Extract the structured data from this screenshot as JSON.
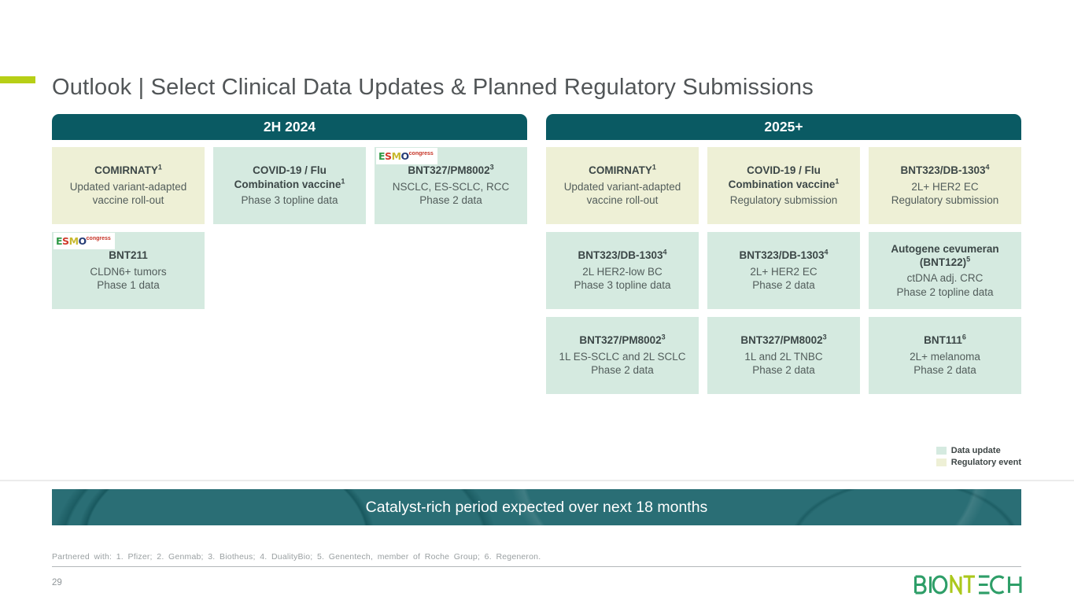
{
  "slide": {
    "title": "Outlook | Select Clinical Data Updates & Planned Regulatory Submissions",
    "page_number": "29",
    "banner_text": "Catalyst-rich period expected over next 18 months",
    "footnote": "Partnered with: 1. Pfizer; 2. Genmab; 3. Biotheus; 4. DualityBio; 5. Genentech, member of Roche Group; 6. Regeneron.",
    "logo_text": "BIONTECH"
  },
  "colors": {
    "header_teal": "#0a5a63",
    "banner_teal": "#2a6e75",
    "card_green": "#d5eae0",
    "card_yellow": "#eef0d6",
    "accent_lime": "#b7cf16",
    "title_gray": "#515557",
    "card_title_gray": "#3c4747",
    "card_body_gray": "#525d5b",
    "logo_green": "#2e9e68",
    "logo_lime": "#abc81c"
  },
  "legend": {
    "items": [
      {
        "label": "Data update",
        "type": "data"
      },
      {
        "label": "Regulatory event",
        "type": "regulatory"
      }
    ]
  },
  "esmo_badge": {
    "letters": [
      {
        "ch": "E",
        "color": "#2f9a47"
      },
      {
        "ch": "S",
        "color": "#d03a2b"
      },
      {
        "ch": "M",
        "color": "#c8b92e"
      },
      {
        "ch": "O",
        "color": "#253c76"
      }
    ],
    "congress": "congress"
  },
  "sections": [
    {
      "header": "2H 2024",
      "rows": [
        [
          {
            "title": "COMIRNATY",
            "sup": "1",
            "body": [
              "Updated variant-adapted vaccine roll-out"
            ],
            "type": "regulatory",
            "badge": false
          },
          {
            "title": "COVID-19 / Flu Combination vaccine",
            "sup": "1",
            "body": [
              "Phase 3 topline data"
            ],
            "type": "data",
            "badge": false
          },
          {
            "title": "BNT327/PM8002",
            "sup": "3",
            "body": [
              "NSCLC, ES-SCLC, RCC",
              "Phase 2 data"
            ],
            "type": "data",
            "badge": true
          }
        ],
        [
          {
            "title": "BNT211",
            "sup": "",
            "body": [
              "CLDN6+ tumors",
              "Phase 1 data"
            ],
            "type": "data",
            "badge": true
          },
          null,
          null
        ]
      ]
    },
    {
      "header": "2025+",
      "rows": [
        [
          {
            "title": "COMIRNATY",
            "sup": "1",
            "body": [
              "Updated variant-adapted vaccine roll-out"
            ],
            "type": "regulatory",
            "badge": false
          },
          {
            "title": "COVID-19 / Flu Combination vaccine",
            "sup": "1",
            "body": [
              "Regulatory submission"
            ],
            "type": "regulatory",
            "badge": false
          },
          {
            "title": "BNT323/DB-1303",
            "sup": "4",
            "body": [
              "2L+ HER2 EC",
              "Regulatory submission"
            ],
            "type": "regulatory",
            "badge": false
          }
        ],
        [
          {
            "title": "BNT323/DB-1303",
            "sup": "4",
            "body": [
              "2L HER2-low BC",
              "Phase 3 topline data"
            ],
            "type": "data",
            "badge": false
          },
          {
            "title": "BNT323/DB-1303",
            "sup": "4",
            "body": [
              "2L+ HER2 EC",
              "Phase 2 data"
            ],
            "type": "data",
            "badge": false
          },
          {
            "title": "Autogene cevumeran (BNT122)",
            "sup": "5",
            "body": [
              "ctDNA adj. CRC",
              "Phase 2 topline data"
            ],
            "type": "data",
            "badge": false
          }
        ],
        [
          {
            "title": "BNT327/PM8002",
            "sup": "3",
            "body": [
              "1L ES-SCLC and 2L SCLC",
              "Phase 2 data"
            ],
            "type": "data",
            "badge": false
          },
          {
            "title": "BNT327/PM8002",
            "sup": "3",
            "body": [
              "1L and 2L TNBC",
              "Phase 2 data"
            ],
            "type": "data",
            "badge": false
          },
          {
            "title": "BNT111",
            "sup": "6",
            "body": [
              "2L+ melanoma",
              "Phase 2 data"
            ],
            "type": "data",
            "badge": false
          }
        ]
      ]
    }
  ]
}
